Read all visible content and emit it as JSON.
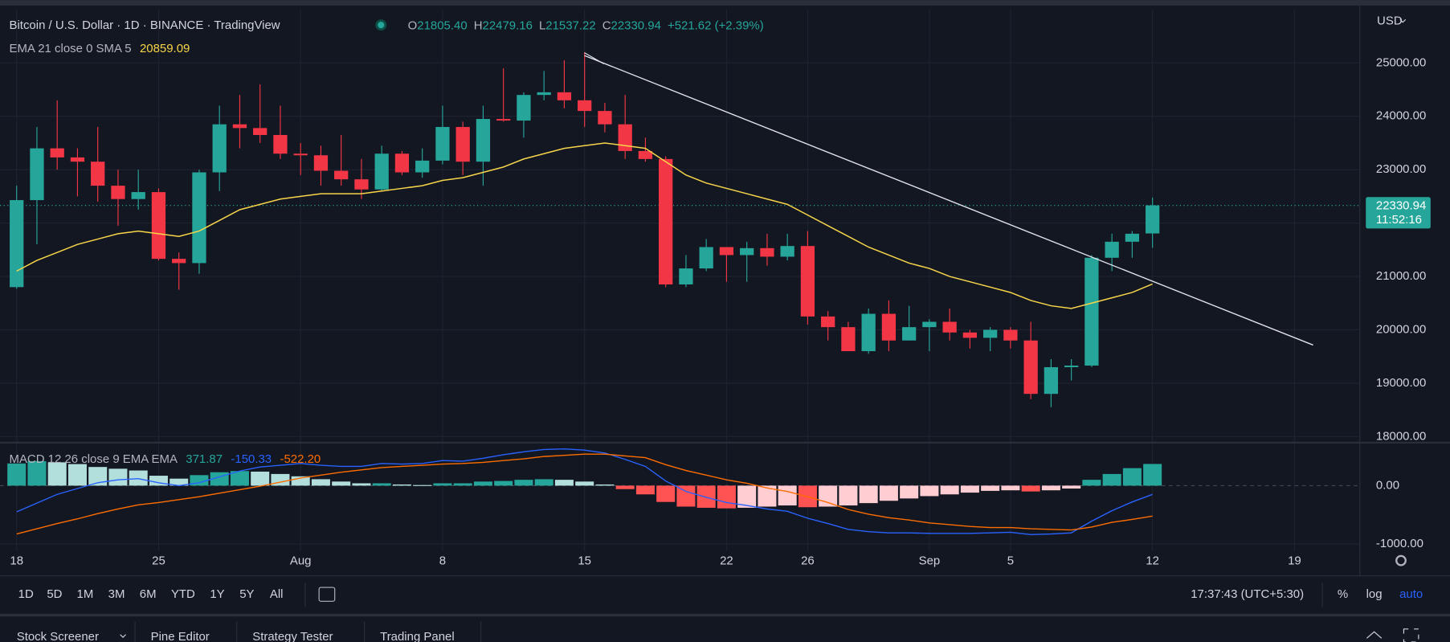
{
  "ui": {
    "currency": "USD",
    "price_badge": "22330.94",
    "countdown": "11:52:16",
    "ranges": [
      "1D",
      "5D",
      "1M",
      "3M",
      "6M",
      "YTD",
      "1Y",
      "5Y",
      "All"
    ],
    "clock": "17:37:43 (UTC+5:30)",
    "scale_buttons": [
      "%",
      "log",
      "auto"
    ],
    "tabs": [
      "Stock Screener",
      "Pine Editor",
      "Strategy Tester",
      "Trading Panel"
    ]
  },
  "chart_data": [
    {
      "type": "candlestick",
      "title": "Bitcoin / U.S. Dollar · 1D · BINANCE · TradingView",
      "legend_prefixes": [
        "O",
        "H",
        "L",
        "C"
      ],
      "legend_values": [
        "21805.40",
        "22479.16",
        "21537.22",
        "22330.94",
        "+521.62 (+2.39%)"
      ],
      "up_color": "#26a69a",
      "down_color": "#f23645",
      "open": [
        20800,
        22430,
        23400,
        23230,
        23150,
        22700,
        22450,
        22580,
        21330,
        21250,
        22950,
        23850,
        23780,
        23650,
        23300,
        23270,
        22980,
        22820,
        22630,
        23300,
        22950,
        23170,
        23800,
        23150,
        23950,
        23920,
        24400,
        24450,
        24300,
        24100,
        23850,
        23350,
        23200,
        20850,
        21150,
        21550,
        21400,
        21530,
        21370,
        21570,
        20250,
        20050,
        19600,
        20300,
        19800,
        20050,
        20150,
        19950,
        19850,
        20000,
        19800,
        18800,
        19300,
        19330,
        21350,
        21650,
        21805.4
      ],
      "high": [
        22700,
        23800,
        24300,
        23400,
        23800,
        23000,
        23000,
        22650,
        21450,
        23000,
        24200,
        24400,
        24600,
        24200,
        23500,
        23450,
        23650,
        23200,
        23450,
        23350,
        23400,
        24200,
        23900,
        24200,
        24900,
        24450,
        24850,
        25050,
        25200,
        24250,
        24400,
        23600,
        23250,
        21400,
        21700,
        21550,
        21650,
        21800,
        21800,
        21850,
        20350,
        20150,
        20400,
        20550,
        20450,
        20200,
        20400,
        20000,
        20050,
        20050,
        20150,
        19450,
        19450,
        21400,
        21800,
        21850,
        22479.16
      ],
      "low": [
        20770,
        21600,
        23000,
        22500,
        22400,
        21950,
        22250,
        21300,
        20750,
        21050,
        22600,
        23400,
        23500,
        23200,
        22900,
        22700,
        22700,
        22450,
        22600,
        22900,
        22850,
        23100,
        22900,
        22700,
        23900,
        23600,
        24300,
        24150,
        23800,
        23700,
        23200,
        23150,
        20800,
        20800,
        21100,
        20900,
        20900,
        21200,
        21300,
        20100,
        19800,
        19600,
        19550,
        19600,
        19800,
        19600,
        19800,
        19650,
        19600,
        19650,
        18700,
        18550,
        19050,
        19300,
        21100,
        21350,
        21537.22
      ],
      "close": [
        22430,
        23400,
        23230,
        23150,
        22700,
        22450,
        22580,
        21330,
        21250,
        22950,
        23850,
        23780,
        23650,
        23300,
        23270,
        22980,
        22820,
        22630,
        23300,
        22950,
        23170,
        23800,
        23150,
        23950,
        23920,
        24400,
        24450,
        24300,
        24100,
        23850,
        23350,
        23200,
        20850,
        21150,
        21550,
        21400,
        21530,
        21370,
        21570,
        20250,
        20050,
        19600,
        20300,
        19800,
        20050,
        20150,
        19950,
        19850,
        20000,
        19800,
        18800,
        19300,
        19330,
        21350,
        21650,
        21800,
        22330.94
      ],
      "series": [
        {
          "name": "EMA 21 close 0 SMA 5",
          "value_label": "20859.09",
          "color": "#f7d54a",
          "values": [
            21100,
            21300,
            21450,
            21600,
            21700,
            21800,
            21850,
            21800,
            21750,
            21850,
            22050,
            22250,
            22350,
            22450,
            22500,
            22550,
            22550,
            22550,
            22600,
            22650,
            22700,
            22800,
            22850,
            22950,
            23050,
            23200,
            23300,
            23400,
            23450,
            23500,
            23450,
            23400,
            23150,
            22900,
            22750,
            22650,
            22550,
            22450,
            22350,
            22150,
            21950,
            21750,
            21550,
            21400,
            21250,
            21150,
            21000,
            20900,
            20800,
            20700,
            20550,
            20450,
            20400,
            20500,
            20600,
            20700,
            20859.09
          ]
        }
      ],
      "xlim": [
        -0.82,
        66.2
      ],
      "xticks": [
        {
          "value": 0,
          "label": "18"
        },
        {
          "value": 7,
          "label": "25"
        },
        {
          "value": 14,
          "label": "Aug"
        },
        {
          "value": 21,
          "label": "8"
        },
        {
          "value": 28,
          "label": "15"
        },
        {
          "value": 35,
          "label": "22"
        },
        {
          "value": 39,
          "label": "26"
        },
        {
          "value": 45,
          "label": "Sep"
        },
        {
          "value": 49,
          "label": "5"
        },
        {
          "value": 56,
          "label": "12"
        },
        {
          "value": 63,
          "label": "19"
        }
      ],
      "ylim": [
        17895,
        26005
      ],
      "yticks": [
        {
          "value": 18000,
          "label": "18000.00"
        },
        {
          "value": 19000,
          "label": "19000.00"
        },
        {
          "value": 20000,
          "label": "20000.00"
        },
        {
          "value": 21000,
          "label": "21000.00"
        },
        {
          "value": 22000,
          "label": "22000.00"
        },
        {
          "value": 23000,
          "label": "23000.00"
        },
        {
          "value": 24000,
          "label": "24000.00"
        },
        {
          "value": 25000,
          "label": "25000.00"
        }
      ],
      "grid": true
    },
    {
      "type": "macd",
      "title": "MACD 12 26 close 9 EMA EMA",
      "value_labels": [
        "371.87",
        "-150.33",
        "-522.20"
      ],
      "histogram": [
        380,
        420,
        400,
        370,
        320,
        290,
        260,
        170,
        120,
        180,
        230,
        250,
        240,
        200,
        160,
        110,
        70,
        40,
        40,
        20,
        10,
        40,
        40,
        70,
        80,
        100,
        110,
        100,
        70,
        20,
        -60,
        -150,
        -280,
        -360,
        -380,
        -390,
        -380,
        -360,
        -340,
        -370,
        -360,
        -340,
        -300,
        -260,
        -220,
        -180,
        -150,
        -120,
        -90,
        -80,
        -100,
        -80,
        -50,
        100,
        200,
        300,
        371.87
      ],
      "histogram_colors": [
        "#26a69a",
        "#b2dfdb",
        "#ff5252",
        "#ffcdd2"
      ],
      "series": [
        {
          "name": "MACD",
          "color": "#2962ff",
          "values": [
            -450,
            -300,
            -150,
            -50,
            50,
            100,
            120,
            50,
            0,
            50,
            150,
            250,
            320,
            350,
            380,
            350,
            330,
            330,
            380,
            370,
            380,
            430,
            420,
            470,
            530,
            580,
            620,
            630,
            610,
            560,
            450,
            330,
            80,
            -100,
            -200,
            -290,
            -340,
            -400,
            -440,
            -560,
            -650,
            -750,
            -790,
            -810,
            -810,
            -820,
            -820,
            -820,
            -810,
            -800,
            -840,
            -830,
            -810,
            -610,
            -430,
            -280,
            -150.33
          ]
        },
        {
          "name": "Signal",
          "color": "#ff6d00",
          "values": [
            -830,
            -740,
            -650,
            -570,
            -480,
            -400,
            -330,
            -290,
            -240,
            -190,
            -130,
            -70,
            -10,
            60,
            130,
            180,
            230,
            270,
            310,
            330,
            350,
            370,
            380,
            400,
            430,
            460,
            500,
            520,
            540,
            540,
            510,
            480,
            360,
            260,
            180,
            100,
            40,
            -40,
            -100,
            -190,
            -290,
            -410,
            -490,
            -550,
            -590,
            -640,
            -670,
            -700,
            -720,
            -720,
            -740,
            -750,
            -760,
            -710,
            -630,
            -580,
            -522.2
          ]
        }
      ],
      "ylim": [
        -1127,
        714
      ],
      "yticks": [
        {
          "value": 0,
          "label": "0.00"
        },
        {
          "value": -1000,
          "label": "-1000.00"
        }
      ]
    }
  ]
}
